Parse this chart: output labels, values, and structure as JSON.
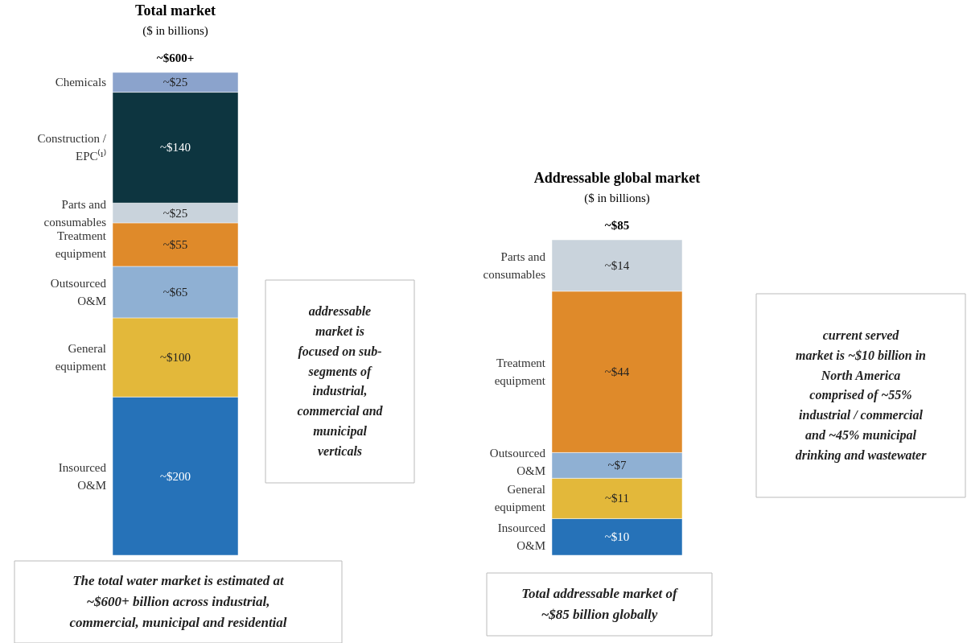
{
  "chart_data": [
    {
      "type": "bar",
      "stacked": true,
      "title": "Total market",
      "subtitle": "($ in billions)",
      "categories": [
        null
      ],
      "legend": false,
      "totals": [
        "~$600+"
      ],
      "series": [
        {
          "name": "Insourced\nO&M",
          "color": "#2672b8",
          "values": [
            200
          ],
          "value_labels": [
            "~$200"
          ]
        },
        {
          "name": "General\nequipment",
          "color": "#e3b83a",
          "values": [
            100
          ],
          "value_labels": [
            "~$100"
          ]
        },
        {
          "name": "Outsourced\nO&M",
          "color": "#8fb0d3",
          "values": [
            65
          ],
          "value_labels": [
            "~$65"
          ]
        },
        {
          "name": "Treatment\nequipment",
          "color": "#df8a2a",
          "values": [
            55
          ],
          "value_labels": [
            "~$55"
          ]
        },
        {
          "name": "Parts and\nconsumables",
          "color": "#c9d3dc",
          "values": [
            25
          ],
          "value_labels": [
            "~$25"
          ]
        },
        {
          "name": "Construction /\nEPC⁽¹⁾",
          "color": "#0d3540",
          "values": [
            140
          ],
          "value_labels": [
            "~$140"
          ]
        },
        {
          "name": "Chemicals",
          "color": "#8ba3cc",
          "values": [
            25
          ],
          "value_labels": [
            "~$25"
          ]
        }
      ],
      "annotations": [
        "addressable\nmarket is\nfocused on sub-\nsegments of\nindustrial,\ncommercial and\nmunicipal\nverticals",
        "The total water market is estimated at\n~$600+ billion across industrial,\ncommercial, municipal and residential"
      ]
    },
    {
      "type": "bar",
      "stacked": true,
      "title": "Addressable global market",
      "subtitle": "($ in billions)",
      "categories": [
        null
      ],
      "legend": false,
      "totals": [
        "~$85"
      ],
      "series": [
        {
          "name": "Insourced\nO&M",
          "color": "#2a6fb4",
          "values": [
            10
          ],
          "value_labels": [
            "~$10"
          ]
        },
        {
          "name": "General\nequipment",
          "color": "#e6b83a",
          "values": [
            11
          ],
          "value_labels": [
            "~$11"
          ]
        },
        {
          "name": "Outsourced\nO&M",
          "color": "#8aa9cc",
          "values": [
            7
          ],
          "value_labels": [
            "~$7"
          ]
        },
        {
          "name": "Treatment\nequipment",
          "color": "#df8a2a",
          "values": [
            44
          ],
          "value_labels": [
            "~$44"
          ]
        },
        {
          "name": "Parts and\nconsumables",
          "color": "#c7d2dc",
          "values": [
            14
          ],
          "value_labels": [
            "~$14"
          ]
        }
      ],
      "annotations": [
        "current served\nmarket is ~$10 billion in\nNorth America\ncomprised of ~55%\nindustrial / commercial\nand ~45% municipal\ndrinking and wastewater",
        "Total addressable market of\n~$85 billion globally"
      ]
    }
  ]
}
